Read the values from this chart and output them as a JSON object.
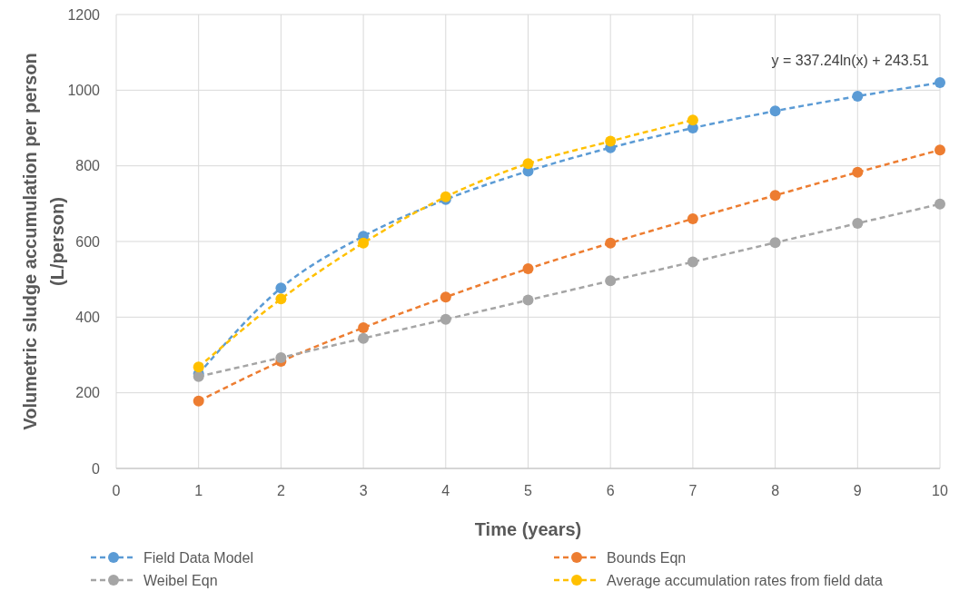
{
  "chart_data": {
    "type": "line",
    "xlabel": "Time (years)",
    "ylabel": "Volumetric sludge accumulation per person\n(L/person)",
    "x": [
      1,
      2,
      3,
      4,
      5,
      6,
      7,
      8,
      9,
      10
    ],
    "xlim": [
      0,
      10
    ],
    "xticks": [
      0,
      1,
      2,
      3,
      4,
      5,
      6,
      7,
      8,
      9,
      10
    ],
    "ylim": [
      0,
      1200
    ],
    "yticks": [
      0,
      200,
      400,
      600,
      800,
      1000,
      1200
    ],
    "grid": true,
    "legend": "bottom",
    "marker": "circle",
    "line_style": "dashed",
    "annotations": [
      "y = 337.24ln(x) + 243.51"
    ],
    "series": [
      {
        "name": "Field Data Model",
        "color": "#5b9bd5",
        "values": [
          250,
          477,
          614,
          711,
          786,
          848,
          900,
          945,
          984,
          1020
        ]
      },
      {
        "name": "Bounds Eqn",
        "color": "#ed7d31",
        "values": [
          178,
          283,
          372,
          453,
          528,
          596,
          660,
          722,
          783,
          842
        ]
      },
      {
        "name": "Weibel Eqn",
        "color": "#a5a5a5",
        "values": [
          243,
          293,
          344,
          394,
          445,
          496,
          546,
          597,
          648,
          699
        ]
      },
      {
        "name": "Average accumulation rates from field data",
        "color": "#ffc000",
        "values": [
          268,
          448,
          596,
          718,
          806,
          865,
          921,
          null,
          null,
          null
        ]
      }
    ]
  }
}
